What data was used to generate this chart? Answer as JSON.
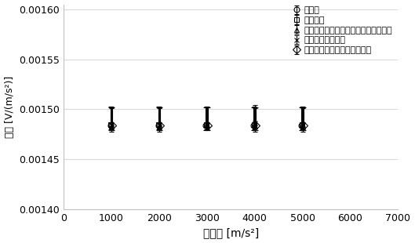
{
  "x_values": [
    1000,
    2000,
    3000,
    4000,
    5000
  ],
  "series": [
    {
      "label": "産総研",
      "marker": "o",
      "values": [
        0.001484,
        0.001484,
        0.001484,
        0.001484,
        0.001484
      ],
      "yerr_upper": [
        1.8e-05,
        1.8e-05,
        1.8e-05,
        1.8e-05,
        1.8e-05
      ],
      "yerr_lower": [
        5e-06,
        5e-06,
        5e-06,
        5e-06,
        5e-06
      ]
    },
    {
      "label": "共和電業",
      "marker": "s",
      "values": [
        0.001485,
        0.001485,
        0.001485,
        0.001485,
        0.001485
      ],
      "yerr_upper": [
        1.8e-05,
        1.8e-05,
        1.8e-05,
        1.8e-05,
        1.8e-05
      ],
      "yerr_lower": [
        5e-06,
        5e-06,
        5e-06,
        5e-06,
        5e-06
      ]
    },
    {
      "label": "トヨタテクニカルディベロップメント",
      "marker": "^",
      "values": [
        0.001483,
        0.001483,
        0.001484,
        0.001483,
        0.001483
      ],
      "yerr_upper": [
        1.8e-05,
        1.8e-05,
        1.8e-05,
        1.8e-05,
        1.8e-05
      ],
      "yerr_lower": [
        5e-06,
        5e-06,
        5e-06,
        5e-06,
        5e-06
      ]
    },
    {
      "label": "日本自動車研究所",
      "marker": "x",
      "values": [
        0.001485,
        0.001485,
        0.001485,
        0.001486,
        0.001485
      ],
      "yerr_upper": [
        1.8e-05,
        1.8e-05,
        1.8e-05,
        1.8e-05,
        1.8e-05
      ],
      "yerr_lower": [
        5e-06,
        5e-06,
        5e-06,
        5e-06,
        5e-06
      ]
    },
    {
      "label": "日産クリエイティブサービス",
      "marker": "D",
      "values": [
        0.001484,
        0.001484,
        0.001484,
        0.001484,
        0.001484
      ],
      "yerr_upper": [
        1.8e-05,
        1.8e-05,
        1.8e-05,
        1.8e-05,
        1.8e-05
      ],
      "yerr_lower": [
        5e-06,
        5e-06,
        5e-06,
        5e-06,
        5e-06
      ]
    }
  ],
  "xlabel": "加速度 [m/s²]",
  "ylabel": "感度 [V/(m/s²)]",
  "xlim": [
    0,
    7000
  ],
  "ylim": [
    0.0014,
    0.001605
  ],
  "yticks": [
    0.0014,
    0.00145,
    0.0015,
    0.00155,
    0.0016
  ],
  "xticks": [
    0,
    1000,
    2000,
    3000,
    4000,
    5000,
    6000,
    7000
  ],
  "color": "black",
  "markersize": 5,
  "capsize": 2,
  "offsets": [
    -20,
    -10,
    0,
    10,
    20
  ]
}
